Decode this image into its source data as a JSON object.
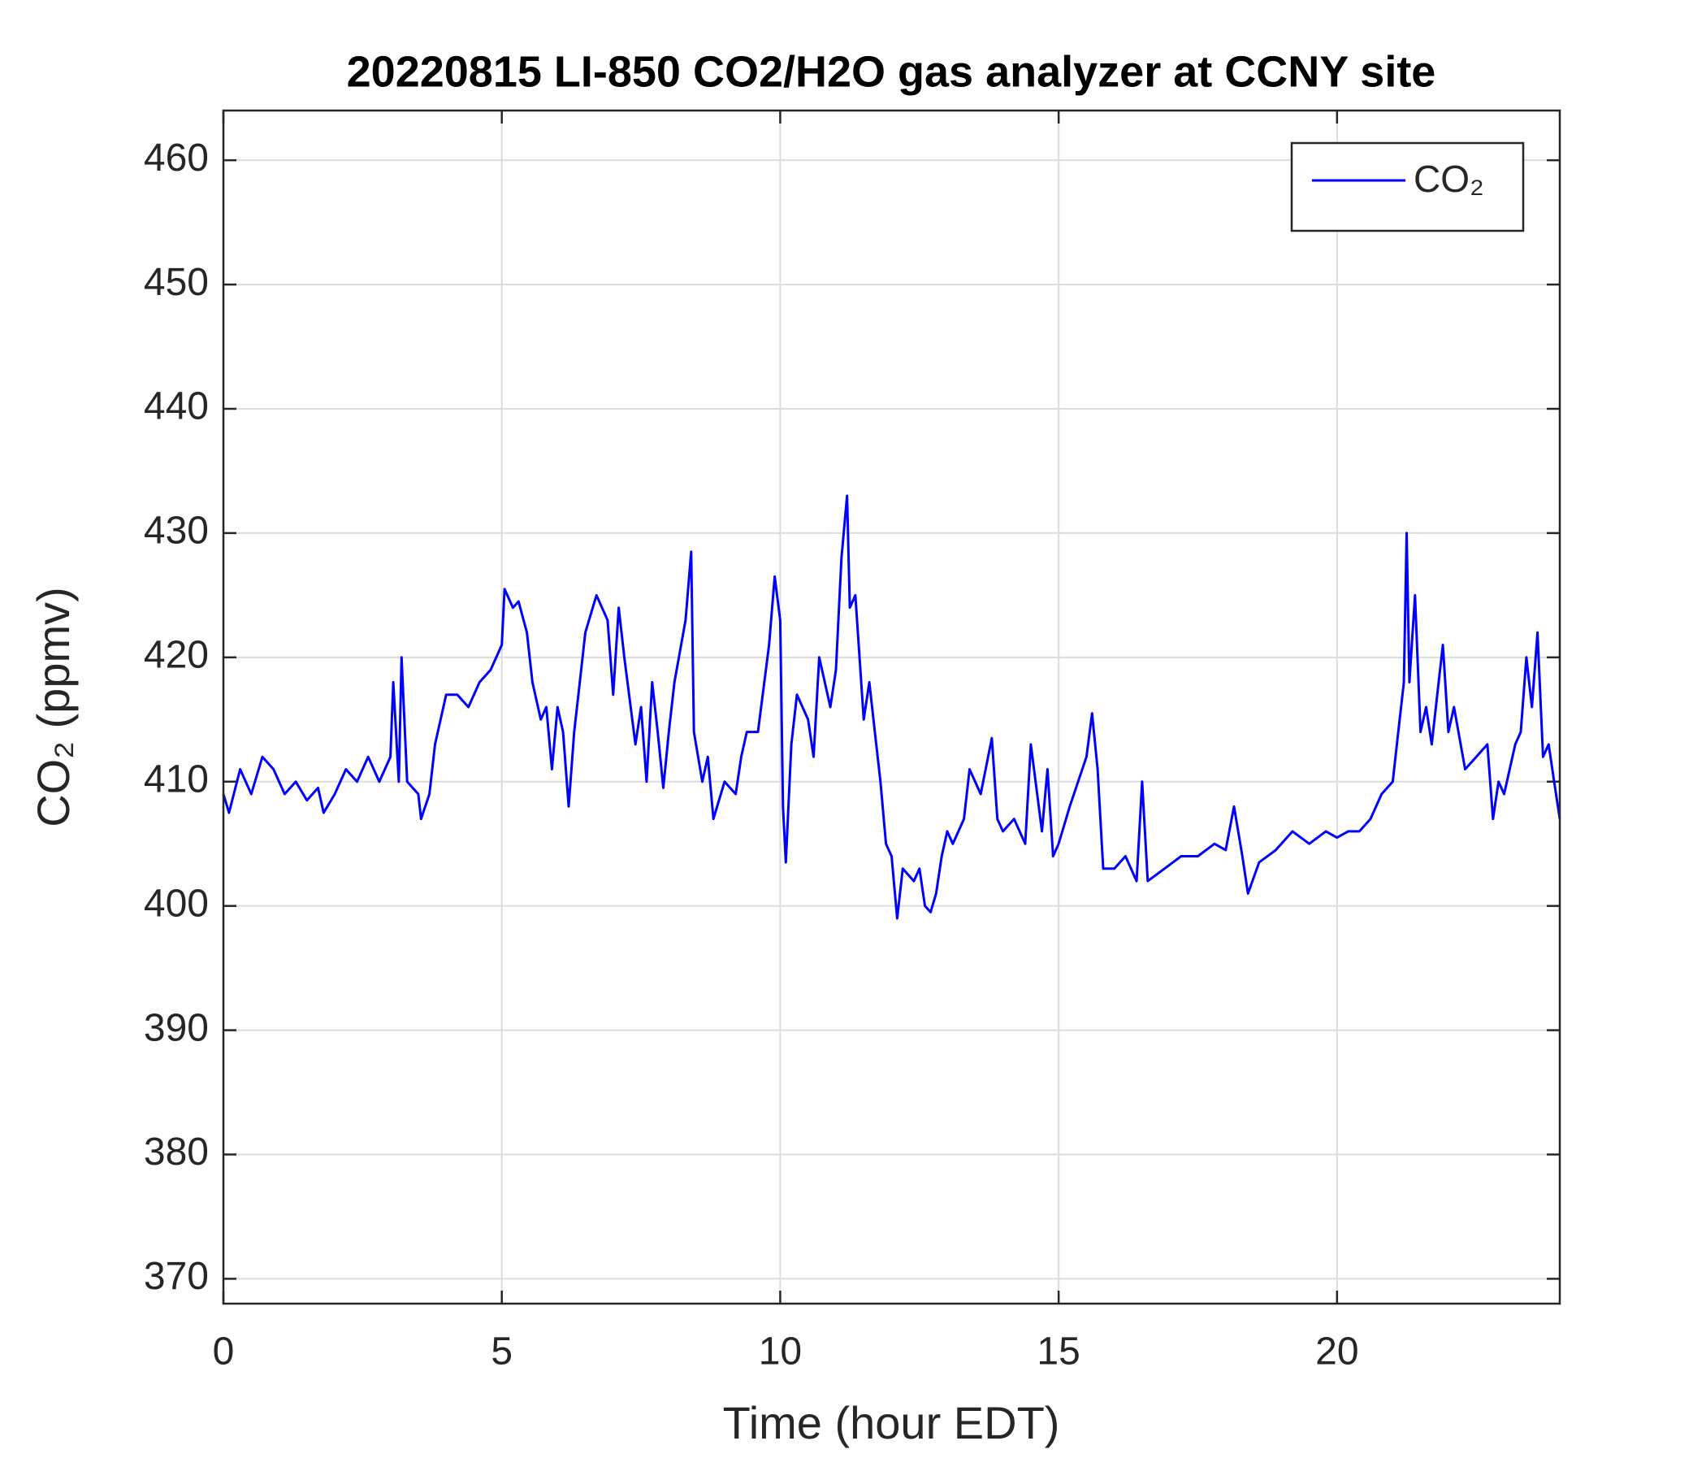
{
  "chart_data": {
    "type": "line",
    "title": "20220815 LI-850 CO2/H2O gas analyzer at CCNY site",
    "xlabel": "Time (hour EDT)",
    "ylabel": "CO₂ (ppmv)",
    "x": [
      0,
      0.1,
      0.3,
      0.5,
      0.7,
      0.9,
      1.1,
      1.3,
      1.5,
      1.7,
      1.8,
      2.0,
      2.2,
      2.4,
      2.6,
      2.8,
      3.0,
      3.05,
      3.15,
      3.2,
      3.3,
      3.5,
      3.55,
      3.7,
      3.8,
      4.0,
      4.2,
      4.4,
      4.6,
      4.8,
      5.0,
      5.05,
      5.2,
      5.3,
      5.45,
      5.55,
      5.7,
      5.8,
      5.9,
      6.0,
      6.1,
      6.2,
      6.3,
      6.4,
      6.5,
      6.7,
      6.9,
      7.0,
      7.1,
      7.2,
      7.4,
      7.5,
      7.6,
      7.7,
      7.8,
      7.9,
      8.0,
      8.1,
      8.3,
      8.4,
      8.45,
      8.6,
      8.7,
      8.8,
      9.0,
      9.2,
      9.3,
      9.4,
      9.6,
      9.8,
      9.9,
      10.0,
      10.05,
      10.1,
      10.2,
      10.3,
      10.5,
      10.6,
      10.7,
      10.8,
      10.9,
      11.0,
      11.1,
      11.2,
      11.25,
      11.35,
      11.5,
      11.6,
      11.7,
      11.8,
      11.9,
      12.0,
      12.1,
      12.2,
      12.4,
      12.5,
      12.6,
      12.7,
      12.8,
      12.9,
      13.0,
      13.1,
      13.3,
      13.4,
      13.6,
      13.8,
      13.9,
      14.0,
      14.2,
      14.4,
      14.5,
      14.7,
      14.8,
      14.9,
      15.0,
      15.2,
      15.5,
      15.6,
      15.7,
      15.8,
      16.0,
      16.2,
      16.4,
      16.5,
      16.6,
      16.9,
      17.2,
      17.5,
      17.8,
      18.0,
      18.15,
      18.3,
      18.4,
      18.6,
      18.9,
      19.2,
      19.5,
      19.8,
      20.0,
      20.2,
      20.4,
      20.6,
      20.8,
      21.0,
      21.1,
      21.2,
      21.25,
      21.3,
      21.4,
      21.5,
      21.6,
      21.7,
      21.8,
      21.9,
      22.0,
      22.1,
      22.3,
      22.5,
      22.7,
      22.8,
      22.9,
      23.0,
      23.2,
      23.3,
      23.4,
      23.5,
      23.6,
      23.7,
      23.8,
      23.9,
      24.0
    ],
    "series": [
      {
        "name": "CO₂",
        "color": "#0000ff",
        "values": [
          409,
          407.5,
          411,
          409,
          412,
          411,
          409,
          410,
          408.5,
          409.5,
          407.5,
          409,
          411,
          410,
          412,
          410,
          412,
          418,
          410,
          420,
          410,
          409,
          407,
          409,
          413,
          417,
          417,
          416,
          418,
          419,
          421,
          425.5,
          424,
          424.5,
          422,
          418,
          415,
          416,
          411,
          416,
          414,
          408,
          414,
          418,
          422,
          425,
          423,
          417,
          424,
          420,
          413,
          416,
          410,
          418,
          414,
          409.5,
          414,
          418,
          423,
          428.5,
          414,
          410,
          412,
          407,
          410,
          409,
          412,
          414,
          414,
          421,
          426.5,
          423,
          408,
          403.5,
          413,
          417,
          415,
          412,
          420,
          418,
          416,
          419,
          428,
          433,
          424,
          425,
          415,
          418,
          414,
          410,
          405,
          404,
          399,
          403,
          402,
          403,
          400,
          399.5,
          401,
          404,
          406,
          405,
          407,
          411,
          409,
          413.5,
          407,
          406,
          407,
          405,
          413,
          406,
          411,
          404,
          405,
          408,
          412,
          415.5,
          411,
          403,
          403,
          404,
          402,
          410,
          402,
          403,
          404,
          404,
          405,
          404.5,
          408,
          404,
          401,
          403.5,
          404.5,
          406,
          405,
          406,
          405.5,
          406,
          406,
          407,
          409,
          410,
          414,
          418,
          430,
          418,
          425,
          414,
          416,
          413,
          417,
          421,
          414,
          416,
          411,
          412,
          413,
          407,
          410,
          409,
          413,
          414,
          420,
          416,
          422,
          412,
          413,
          410,
          407
        ]
      }
    ],
    "xlim": [
      0,
      24
    ],
    "xticks": [
      0,
      5,
      10,
      15,
      20
    ],
    "ylim": [
      368,
      464
    ],
    "yticks": [
      370,
      380,
      390,
      400,
      410,
      420,
      430,
      440,
      450,
      460
    ],
    "grid": true,
    "legend": "upper right"
  }
}
